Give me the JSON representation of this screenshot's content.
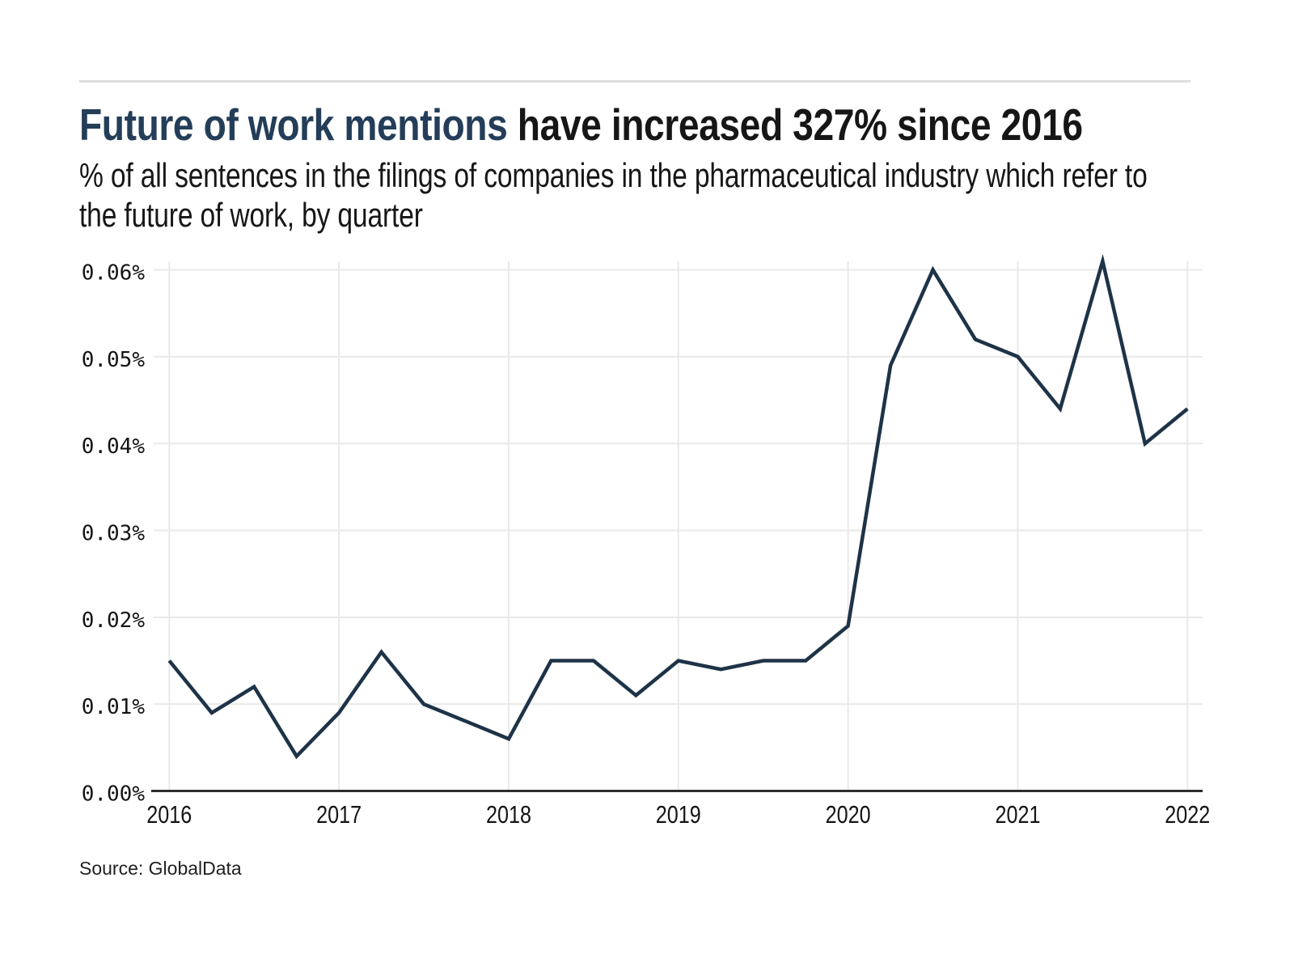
{
  "header": {
    "title_highlight": "Future of work mentions",
    "title_rest": " have increased 327% since 2016",
    "subtitle": "% of all sentences in the filings of companies in the pharmaceutical industry which refer to the future of work, by quarter"
  },
  "footer": {
    "source": "Source: GlobalData"
  },
  "colors": {
    "title_highlight": "#243e59",
    "ink": "#161616",
    "line": "#1e3347",
    "grid": "#e9e9e9",
    "axis": "#2f2f2f",
    "rule": "#dedede"
  },
  "chart_data": {
    "type": "line",
    "title": "Future of work mentions have increased 327% since 2016",
    "subtitle": "% of all sentences in the filings of companies in the pharmaceutical industry which refer to the future of work, by quarter",
    "source": "Source: GlobalData",
    "unit": "% of all sentences",
    "x": [
      "2016 Q1",
      "2016 Q2",
      "2016 Q3",
      "2016 Q4",
      "2017 Q1",
      "2017 Q2",
      "2017 Q3",
      "2017 Q4",
      "2018 Q1",
      "2018 Q2",
      "2018 Q3",
      "2018 Q4",
      "2019 Q1",
      "2019 Q2",
      "2019 Q3",
      "2019 Q4",
      "2020 Q1",
      "2020 Q2",
      "2020 Q3",
      "2020 Q4",
      "2021 Q1",
      "2021 Q2",
      "2021 Q3",
      "2021 Q4",
      "2022 Q1"
    ],
    "values": [
      0.015,
      0.009,
      0.012,
      0.004,
      0.009,
      0.016,
      0.01,
      0.008,
      0.006,
      0.015,
      0.015,
      0.011,
      0.015,
      0.014,
      0.015,
      0.015,
      0.019,
      0.049,
      0.06,
      0.052,
      0.05,
      0.044,
      0.061,
      0.04,
      0.044
    ],
    "ylim": [
      0,
      0.06
    ],
    "yticks": [
      {
        "value": 0.0,
        "label": "0.00%"
      },
      {
        "value": 0.01,
        "label": "0.01%"
      },
      {
        "value": 0.02,
        "label": "0.02%"
      },
      {
        "value": 0.03,
        "label": "0.03%"
      },
      {
        "value": 0.04,
        "label": "0.04%"
      },
      {
        "value": 0.05,
        "label": "0.05%"
      },
      {
        "value": 0.06,
        "label": "0.06%"
      }
    ],
    "xticks": [
      {
        "quarter_index": 0,
        "label": "2016"
      },
      {
        "quarter_index": 4,
        "label": "2017"
      },
      {
        "quarter_index": 8,
        "label": "2018"
      },
      {
        "quarter_index": 12,
        "label": "2019"
      },
      {
        "quarter_index": 16,
        "label": "2020"
      },
      {
        "quarter_index": 20,
        "label": "2021"
      },
      {
        "quarter_index": 24,
        "label": "2022"
      }
    ],
    "grid": true,
    "legend": false
  }
}
